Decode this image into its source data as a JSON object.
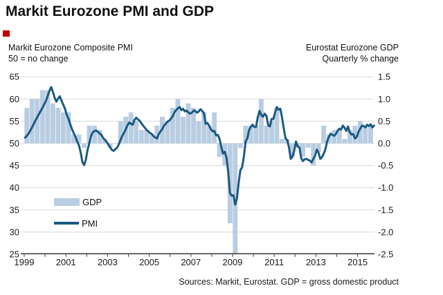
{
  "title": "Markit Eurozone PMI and GDP",
  "left_axis_title": {
    "line1": "Markit Eurozone Composite PMI",
    "line2": "50 = no change"
  },
  "right_axis_title": {
    "line1": "Eurostat Eurozone GDP",
    "line2": "Quarterly % change"
  },
  "legend": {
    "gdp": "GDP",
    "pmi": "PMI"
  },
  "source": "Sources: Markit, Eurostat. GDP = gross domestic product",
  "colors": {
    "bar": "#b9cde2",
    "line": "#1a5a80",
    "grid": "#d9d9d9",
    "axis": "#404040",
    "text": "#1a1a1a",
    "marker_red": "#c00000"
  },
  "chart_data": {
    "type": "combo",
    "title": "Markit Eurozone PMI and GDP",
    "xlabel": "",
    "x_range_years": [
      1999,
      2015.83
    ],
    "x_ticks": [
      "1999",
      "2001",
      "2003",
      "2005",
      "2007",
      "2009",
      "2011",
      "2013",
      "2015"
    ],
    "x_minor_ticks_every_year": true,
    "grid": true,
    "legend_position": "inside-left",
    "left_axis": {
      "label": "Markit Eurozone Composite PMI (50 = no change)",
      "ylim": [
        25,
        65
      ],
      "ticks": [
        65,
        60,
        55,
        50,
        45,
        40,
        35,
        30,
        25
      ]
    },
    "right_axis": {
      "label": "Eurostat Eurozone GDP Quarterly % change",
      "ylim": [
        -2.5,
        1.5
      ],
      "ticks": [
        "1.5",
        "1.0",
        "0.5",
        "0.0",
        "-0.5",
        "-1.0",
        "-1.5",
        "-2.0",
        "-2.5"
      ]
    },
    "series": [
      {
        "name": "GDP",
        "type": "bar",
        "axis": "right",
        "frequency": "quarterly",
        "start": "1999Q1",
        "end": "2015Q3",
        "values": [
          0.8,
          1.0,
          1.0,
          1.2,
          1.2,
          0.9,
          0.8,
          0.7,
          0.7,
          0.2,
          0.2,
          -0.1,
          0.4,
          0.4,
          0.3,
          0.1,
          -0.1,
          0.0,
          0.5,
          0.6,
          0.7,
          0.5,
          0.3,
          0.3,
          0.2,
          0.4,
          0.6,
          0.5,
          0.8,
          1.0,
          0.6,
          0.9,
          0.8,
          0.5,
          0.7,
          0.4,
          0.7,
          -0.3,
          -0.5,
          -1.8,
          -2.5,
          -0.1,
          0.4,
          0.4,
          0.4,
          1.0,
          0.4,
          0.5,
          0.8,
          0.1,
          0.1,
          -0.3,
          -0.1,
          -0.3,
          -0.1,
          -0.5,
          -0.2,
          0.4,
          0.2,
          0.3,
          0.3,
          0.1,
          0.3,
          0.4,
          0.5,
          0.4,
          0.4
        ]
      },
      {
        "name": "PMI",
        "type": "line",
        "axis": "left",
        "frequency": "monthly",
        "start": "1999-01",
        "end": "2015-10",
        "values": [
          51.3,
          51.7,
          52.2,
          52.9,
          53.6,
          54.4,
          55.2,
          55.9,
          56.6,
          57.3,
          58.0,
          58.8,
          59.6,
          60.7,
          61.8,
          62.7,
          61.6,
          60.3,
          59.4,
          60.1,
          60.6,
          59.6,
          58.7,
          57.8,
          56.4,
          55.5,
          54.3,
          53.2,
          52.3,
          51.5,
          50.4,
          49.6,
          48.0,
          45.8,
          45.1,
          46.3,
          48.6,
          50.1,
          51.7,
          52.5,
          52.8,
          52.9,
          52.6,
          52.2,
          51.9,
          51.2,
          50.8,
          50.3,
          49.7,
          49.1,
          48.5,
          48.3,
          48.7,
          49.0,
          49.8,
          50.8,
          51.7,
          52.4,
          53.2,
          54.1,
          54.7,
          54.4,
          54.2,
          55.3,
          55.8,
          55.4,
          55.1,
          54.5,
          54.0,
          53.5,
          53.0,
          52.7,
          52.3,
          52.1,
          51.6,
          51.3,
          51.1,
          52.1,
          52.7,
          53.2,
          54.0,
          54.4,
          54.9,
          55.1,
          55.6,
          56.1,
          57.0,
          57.5,
          57.9,
          58.2,
          57.5,
          57.8,
          57.2,
          57.4,
          57.0,
          56.7,
          56.9,
          57.4,
          57.3,
          56.9,
          57.2,
          57.7,
          57.3,
          56.8,
          54.4,
          54.6,
          54.0,
          53.2,
          52.7,
          52.8,
          51.8,
          51.9,
          51.0,
          49.2,
          47.7,
          48.1,
          46.8,
          43.5,
          38.8,
          38.2,
          38.3,
          36.2,
          37.6,
          41.1,
          44.0,
          44.6,
          47.0,
          50.4,
          51.1,
          53.0,
          53.7,
          54.2,
          53.7,
          53.7,
          55.9,
          57.3,
          56.4,
          56.0,
          56.7,
          56.2,
          54.1,
          53.8,
          55.5,
          55.5,
          57.0,
          58.2,
          57.6,
          57.8,
          55.8,
          53.3,
          51.1,
          50.7,
          49.1,
          46.5,
          47.0,
          48.3,
          50.4,
          49.3,
          49.1,
          46.7,
          46.0,
          46.4,
          46.5,
          46.3,
          46.1,
          45.7,
          46.5,
          47.2,
          48.6,
          47.9,
          46.5,
          46.9,
          47.7,
          48.7,
          50.5,
          51.5,
          52.2,
          51.9,
          51.7,
          52.1,
          52.9,
          53.3,
          53.1,
          54.0,
          53.5,
          52.8,
          53.8,
          52.5,
          52.0,
          52.1,
          51.1,
          51.4,
          52.6,
          53.3,
          54.0,
          53.9,
          53.6,
          54.2,
          53.9,
          54.3,
          53.6,
          54.0
        ]
      }
    ]
  }
}
